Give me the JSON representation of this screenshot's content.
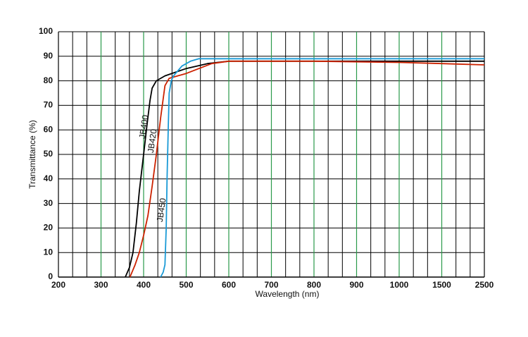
{
  "chart_data": {
    "type": "line",
    "xlabel": "Wavelength (nm)",
    "ylabel": "Transmittance (%)",
    "xlim": [
      200,
      2500
    ],
    "xticks": [
      200,
      300,
      400,
      500,
      600,
      700,
      800,
      900,
      1000,
      1500,
      2500
    ],
    "ylim": [
      0,
      100
    ],
    "yticks": [
      0,
      10,
      20,
      30,
      40,
      50,
      60,
      70,
      80,
      90,
      100
    ],
    "grid": true,
    "series": [
      {
        "name": "JB400",
        "color": "#000000",
        "x": [
          357,
          367,
          375,
          383,
          390,
          400,
          408,
          415,
          420,
          430,
          450,
          500,
          550,
          600,
          700,
          800,
          1000,
          1500,
          2500
        ],
        "values": [
          0,
          4,
          10,
          22,
          35,
          50,
          62,
          72,
          77,
          80,
          82,
          85,
          87,
          88,
          88,
          88,
          88,
          88,
          88
        ]
      },
      {
        "name": "JB420",
        "color": "#cc2200",
        "x": [
          368,
          380,
          390,
          400,
          410,
          420,
          430,
          440,
          450,
          460,
          480,
          500,
          530,
          560,
          600,
          800,
          1000,
          1500,
          2500
        ],
        "values": [
          0,
          5,
          10,
          17,
          25,
          37,
          50,
          65,
          78,
          81,
          82,
          83,
          85,
          87,
          88,
          88,
          87.5,
          87,
          86.5
        ]
      },
      {
        "name": "JB450",
        "color": "#1a9ad6",
        "x": [
          440,
          446,
          450,
          453,
          455,
          458,
          460,
          465,
          470,
          480,
          490,
          510,
          530,
          600,
          1000,
          1500,
          2500
        ],
        "values": [
          0,
          2,
          5,
          20,
          40,
          62,
          75,
          80,
          82,
          84,
          86,
          88,
          89,
          89,
          89,
          89,
          89
        ]
      }
    ]
  }
}
